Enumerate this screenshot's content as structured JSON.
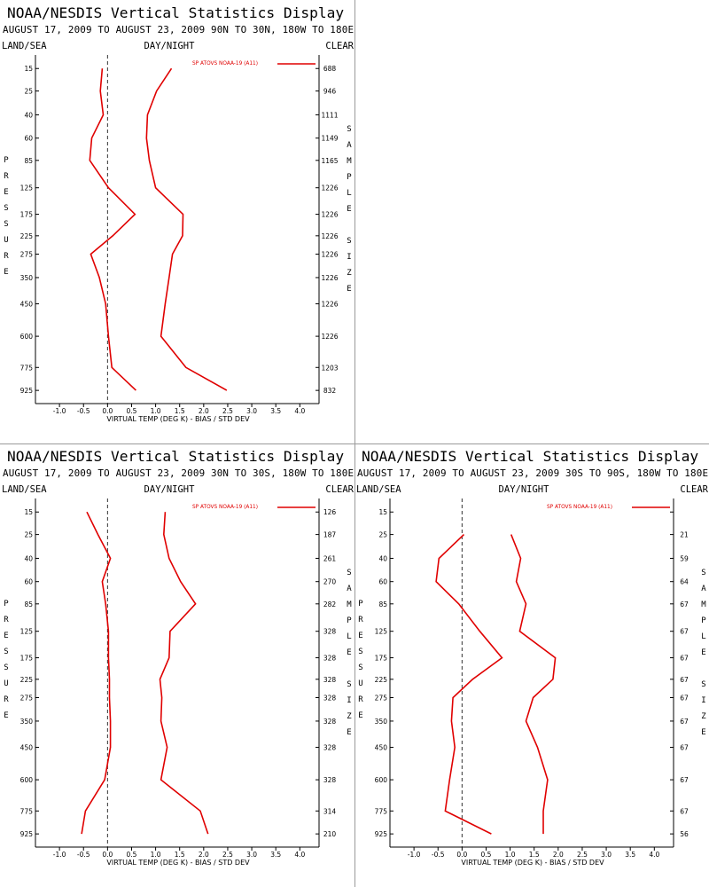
{
  "chart_data": [
    {
      "type": "profile",
      "title": "NOAA/NESDIS Vertical Statistics Display",
      "subtitle": "AUGUST 17, 2009 TO AUGUST 23, 2009 90N TO 30N, 180W TO 180E",
      "left_header": "LAND/SEA",
      "center_header": "DAY/NIGHT",
      "right_header": "CLEAR",
      "ylabel": "PRESSURE",
      "y2label": "SAMPLE SIZE",
      "xlabel": "VIRTUAL TEMP (DEG K) - BIAS / STD DEV",
      "y": [
        15,
        25,
        40,
        60,
        85,
        125,
        175,
        225,
        275,
        350,
        450,
        600,
        775,
        925
      ],
      "sample_size": [
        688,
        946,
        1111,
        1149,
        1165,
        1226,
        1226,
        1226,
        1226,
        1226,
        1226,
        1226,
        1203,
        832
      ],
      "series": [
        {
          "name": "SP ATOVS NOAA-19 (A11)",
          "color": "#e00000",
          "values": [
            -0.11,
            -0.15,
            -0.09,
            -0.33,
            -0.37,
            0.02,
            0.57,
            0.11,
            -0.35,
            -0.17,
            -0.04,
            0.02,
            0.09,
            0.59
          ],
          "std_dev": [
            1.33,
            1.02,
            0.83,
            0.81,
            0.87,
            1.0,
            1.57,
            1.56,
            1.35,
            1.28,
            1.2,
            1.11,
            1.63,
            2.48
          ]
        }
      ],
      "xlim": [
        -1.5,
        4.4
      ],
      "xticks": [
        {
          "value": -1,
          "label": "-1.0"
        },
        -0.5,
        {
          "value": 0,
          "label": "0.0"
        },
        0.5,
        {
          "value": 1,
          "label": "1.0"
        },
        1.5,
        {
          "value": 2,
          "label": "2.0"
        },
        2.5,
        {
          "value": 3,
          "label": "3.0"
        },
        3.5,
        {
          "value": 4,
          "label": "4.0"
        }
      ],
      "ylim": [
        10.6,
        1020
      ],
      "yticks": [
        15,
        25,
        40,
        60,
        85,
        125,
        175,
        225,
        275,
        350,
        450,
        600,
        775,
        925
      ],
      "yscale": {
        "type": "power",
        "exponent": 0.286
      }
    },
    {
      "type": "profile",
      "title": "NOAA/NESDIS Vertical Statistics Display",
      "subtitle": "AUGUST 17, 2009 TO AUGUST 23, 2009 30N TO 30S, 180W TO 180E",
      "left_header": "LAND/SEA",
      "center_header": "DAY/NIGHT",
      "right_header": "CLEAR",
      "ylabel": "PRESSURE",
      "y2label": "SAMPLE SIZE",
      "xlabel": "VIRTUAL TEMP (DEG K) - BIAS / STD DEV",
      "y": [
        15,
        25,
        40,
        60,
        85,
        125,
        175,
        225,
        275,
        350,
        450,
        600,
        775,
        925
      ],
      "sample_size": [
        126,
        187,
        261,
        270,
        282,
        328,
        328,
        328,
        328,
        328,
        328,
        328,
        314,
        210
      ],
      "series": [
        {
          "name": "SP ATOVS NOAA-19 (A11)",
          "color": "#e00000",
          "values": [
            -0.43,
            -0.2,
            0.06,
            -0.11,
            -0.04,
            0.02,
            0.02,
            0.04,
            0.04,
            0.06,
            0.06,
            -0.06,
            -0.46,
            -0.54
          ],
          "std_dev": [
            1.2,
            1.17,
            1.28,
            1.52,
            1.83,
            1.3,
            1.28,
            1.09,
            1.13,
            1.11,
            1.24,
            1.11,
            1.93,
            2.09
          ]
        }
      ],
      "xlim": [
        -1.5,
        4.4
      ],
      "xticks": [
        {
          "value": -1,
          "label": "-1.0"
        },
        -0.5,
        {
          "value": 0,
          "label": "0.0"
        },
        0.5,
        {
          "value": 1,
          "label": "1.0"
        },
        1.5,
        {
          "value": 2,
          "label": "2.0"
        },
        2.5,
        {
          "value": 3,
          "label": "3.0"
        },
        3.5,
        {
          "value": 4,
          "label": "4.0"
        }
      ],
      "ylim": [
        10.6,
        1020
      ],
      "yticks": [
        15,
        25,
        40,
        60,
        85,
        125,
        175,
        225,
        275,
        350,
        450,
        600,
        775,
        925
      ],
      "yscale": {
        "type": "power",
        "exponent": 0.286
      }
    },
    {
      "type": "profile",
      "title": "NOAA/NESDIS Vertical Statistics Display",
      "subtitle": "AUGUST 17, 2009 TO AUGUST 23, 2009 30S TO 90S, 180W TO 180E",
      "left_header": "LAND/SEA",
      "center_header": "DAY/NIGHT",
      "right_header": "CLEAR",
      "ylabel": "PRESSURE",
      "y2label": "SAMPLE SIZE",
      "xlabel": "VIRTUAL TEMP (DEG K) - BIAS / STD DEV",
      "y": [
        25,
        40,
        60,
        85,
        125,
        175,
        225,
        275,
        350,
        450,
        600,
        775,
        925
      ],
      "sample_size": [
        21,
        59,
        64,
        67,
        67,
        67,
        67,
        67,
        67,
        67,
        67,
        67,
        56
      ],
      "series": [
        {
          "name": "SP ATOVS NOAA-19 (A11)",
          "color": "#e00000",
          "values": [
            0.04,
            -0.48,
            -0.54,
            -0.07,
            0.37,
            0.83,
            0.22,
            -0.19,
            -0.22,
            -0.15,
            -0.26,
            -0.35,
            0.61
          ],
          "std_dev": [
            1.02,
            1.22,
            1.13,
            1.33,
            1.2,
            1.94,
            1.89,
            1.48,
            1.33,
            1.57,
            1.78,
            1.69,
            1.69
          ]
        }
      ],
      "xlim": [
        -1.5,
        4.4
      ],
      "xticks": [
        {
          "value": -1,
          "label": "-1.0"
        },
        -0.5,
        {
          "value": 0,
          "label": "0.0"
        },
        0.5,
        {
          "value": 1,
          "label": "1.0"
        },
        1.5,
        {
          "value": 2,
          "label": "2.0"
        },
        2.5,
        {
          "value": 3,
          "label": "3.0"
        },
        3.5,
        {
          "value": 4,
          "label": "4.0"
        }
      ],
      "ylim": [
        10.6,
        1020
      ],
      "yticks": [
        15,
        25,
        40,
        60,
        85,
        125,
        175,
        225,
        275,
        350,
        450,
        600,
        775,
        925
      ],
      "yscale": {
        "type": "power",
        "exponent": 0.286
      }
    }
  ]
}
